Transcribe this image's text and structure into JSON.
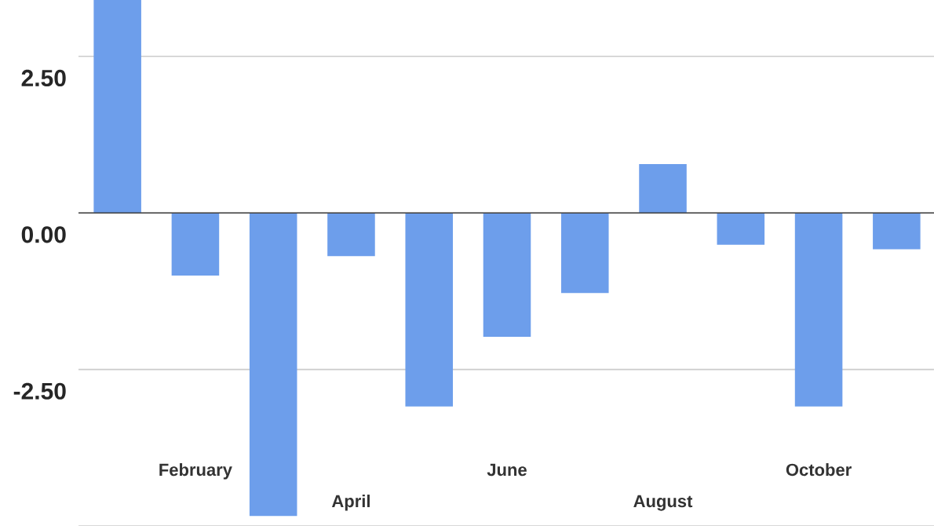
{
  "chart_data": {
    "type": "bar",
    "categories": [
      null,
      "February",
      null,
      "April",
      null,
      "June",
      null,
      "August",
      null,
      "October",
      null
    ],
    "values": [
      3.4,
      -1.0,
      -4.84,
      -0.69,
      -3.09,
      -1.98,
      -1.28,
      0.78,
      -0.51,
      -3.09,
      -0.58
    ],
    "color": "#6d9eeb",
    "ylim": [
      -5,
      3.4
    ],
    "yticks": [
      {
        "value": -5,
        "label": null
      },
      {
        "value": -2.5,
        "label": "-2.50"
      },
      {
        "value": 0,
        "label": "0.00"
      },
      {
        "value": 2.5,
        "label": "2.50"
      }
    ],
    "grid": "y"
  }
}
